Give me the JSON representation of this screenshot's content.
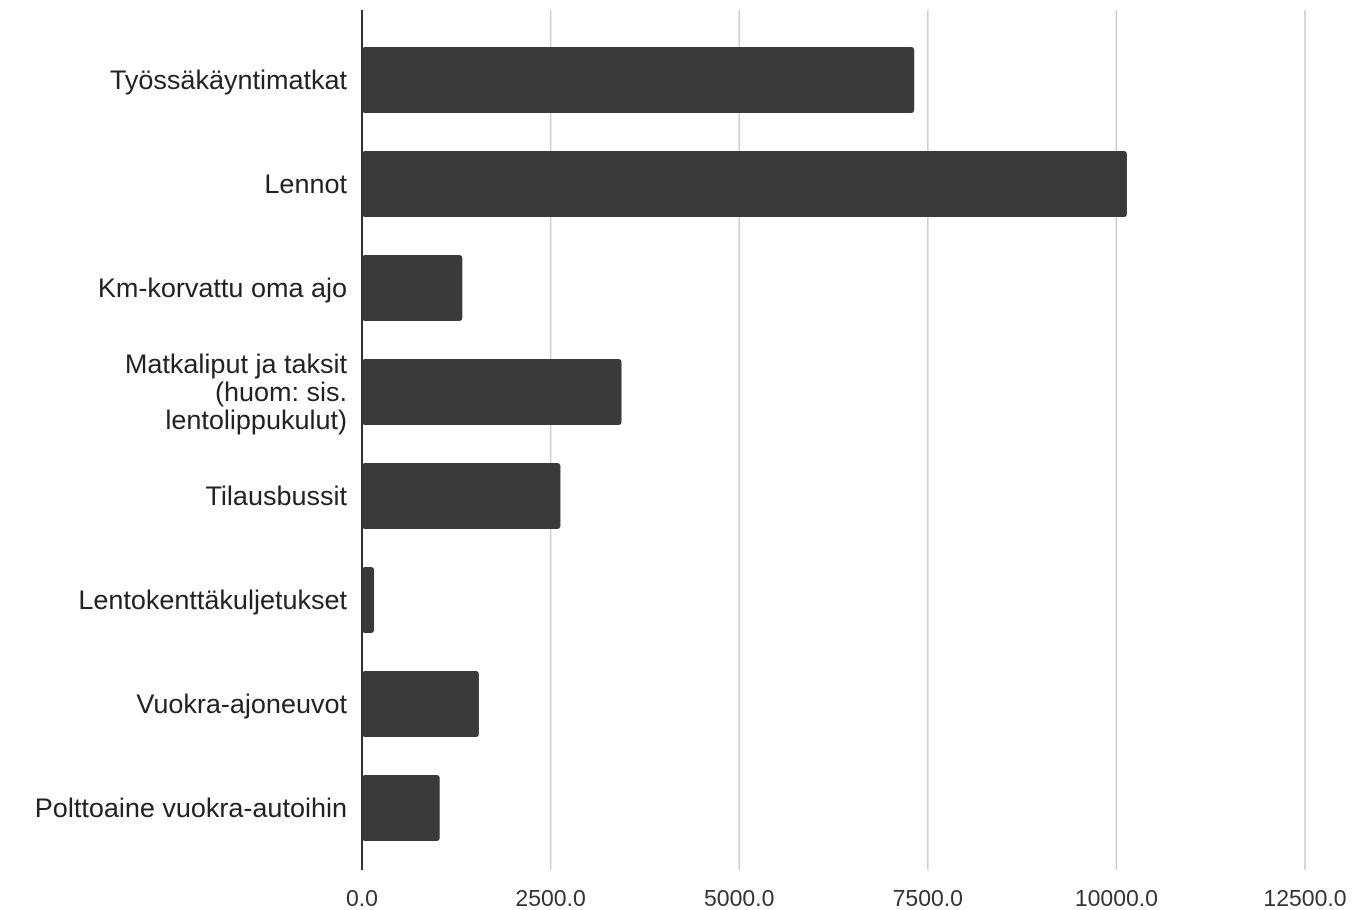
{
  "chart_data": {
    "type": "bar",
    "orientation": "horizontal",
    "title": "",
    "xlabel": "",
    "ylabel": "",
    "categories": [
      [
        "Työssäkäyntimatkat"
      ],
      [
        "Lennot"
      ],
      [
        "Km-korvattu oma ajo"
      ],
      [
        "Matkaliput ja taksit",
        "(huom: sis.",
        "lentolippukulut)"
      ],
      [
        "Tilausbussit"
      ],
      [
        "Lentokenttäkuljetukset"
      ],
      [
        "Vuokra-ajoneuvot"
      ],
      [
        "Polttoaine vuokra-autoihin"
      ]
    ],
    "values": [
      7320,
      10140,
      1330,
      3440,
      2630,
      160,
      1550,
      1030
    ],
    "xlim": [
      0,
      12500
    ],
    "x_ticks": [
      0,
      2500,
      5000,
      7500,
      10000,
      12500
    ],
    "x_tick_labels": [
      "0.0",
      "2500.0",
      "5000.0",
      "7500.0",
      "10000.0",
      "12500.0"
    ],
    "grid": true,
    "legend": "none",
    "colors": {
      "bar": "#3a3a3a",
      "grid": "#cccccc",
      "axis": "#333333"
    }
  }
}
